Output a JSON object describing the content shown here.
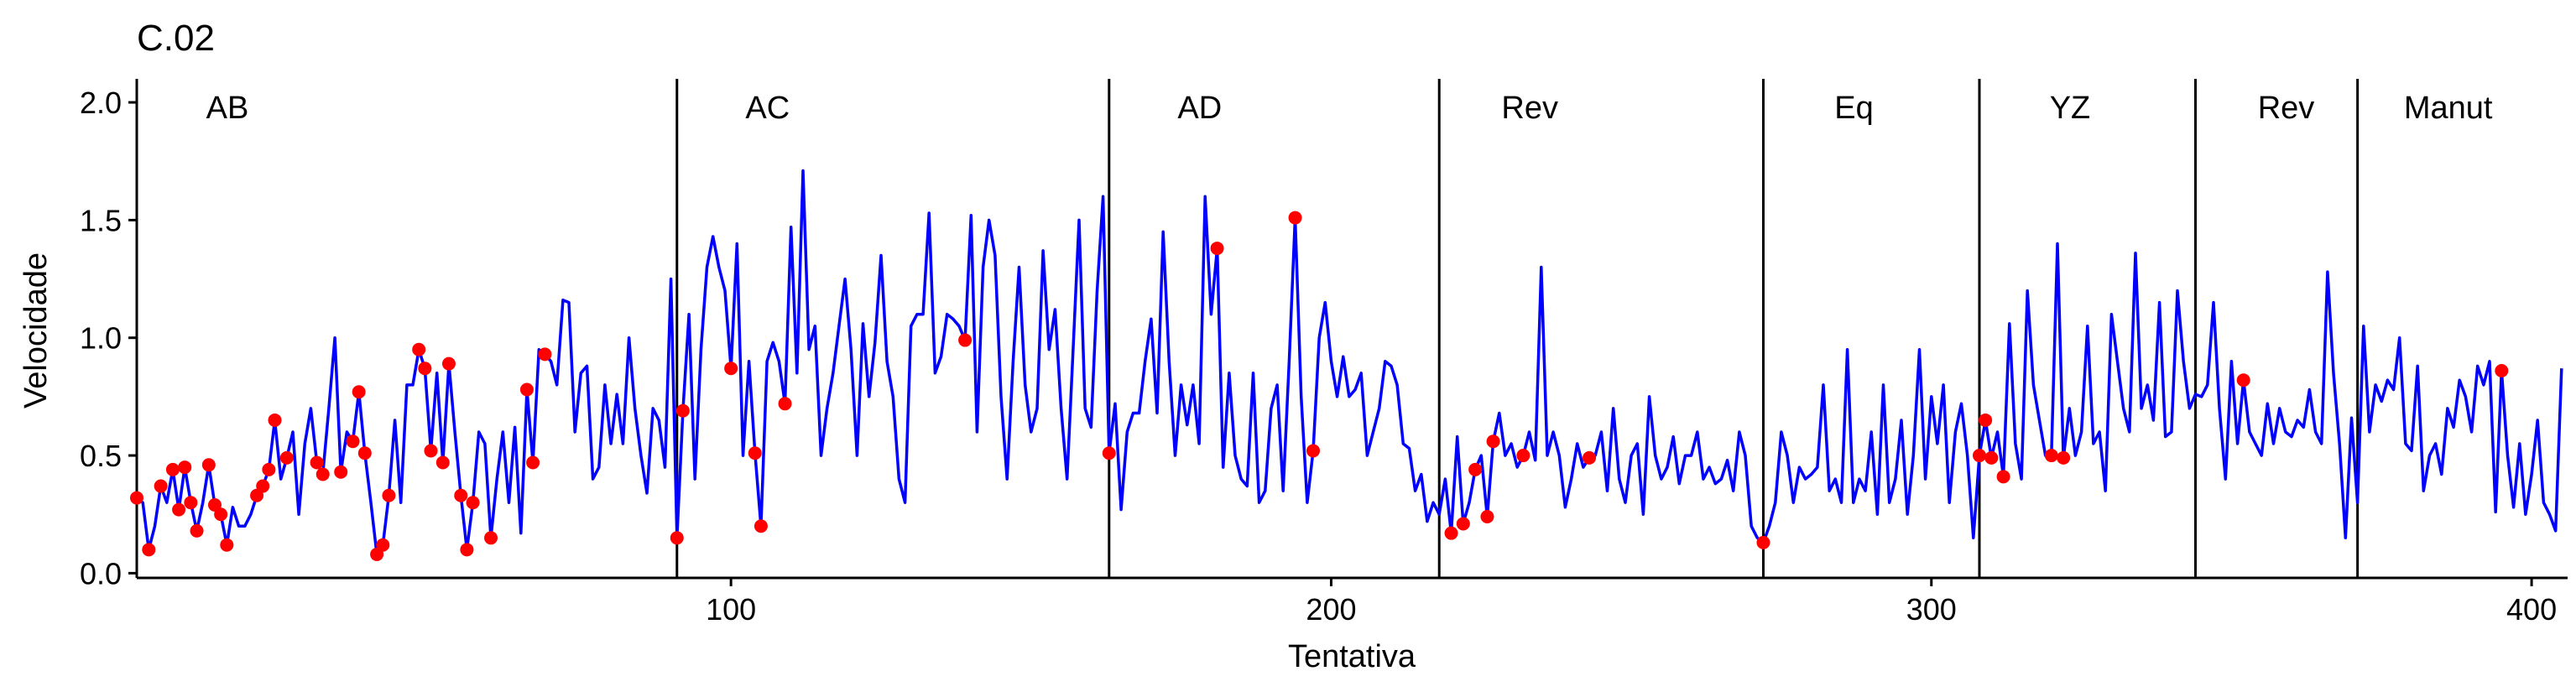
{
  "chart_data": {
    "type": "line",
    "title": "C.02",
    "x_label": "Tentativa",
    "y_label": "Velocidade",
    "xlim": [
      1,
      406
    ],
    "ylim": [
      -0.02,
      2.1
    ],
    "xticks": [
      100,
      200,
      300,
      400
    ],
    "yticks": [
      {
        "value": 0,
        "label": "0.0"
      },
      0.5,
      {
        "value": 1,
        "label": "1.0"
      },
      1.5,
      {
        "value": 2,
        "label": "2.0"
      }
    ],
    "grid": false,
    "series": [
      {
        "color": "#0000ff",
        "x": [
          1,
          2,
          3,
          4,
          5,
          6,
          7,
          8,
          9,
          10,
          11,
          12,
          13,
          14,
          15,
          16,
          17,
          18,
          19,
          20,
          21,
          22,
          23,
          24,
          25,
          26,
          27,
          28,
          29,
          30,
          31,
          32,
          33,
          34,
          35,
          36,
          37,
          38,
          39,
          40,
          41,
          42,
          43,
          44,
          45,
          46,
          47,
          48,
          49,
          50,
          51,
          52,
          53,
          54,
          55,
          56,
          57,
          58,
          59,
          60,
          61,
          62,
          63,
          64,
          65,
          66,
          67,
          68,
          69,
          70,
          71,
          72,
          73,
          74,
          75,
          76,
          77,
          78,
          79,
          80,
          81,
          82,
          83,
          84,
          85,
          86,
          87,
          88,
          89,
          90,
          91,
          92,
          93,
          94,
          95,
          96,
          97,
          98,
          99,
          100,
          101,
          102,
          103,
          104,
          105,
          106,
          107,
          108,
          109,
          110,
          111,
          112,
          113,
          114,
          115,
          116,
          117,
          118,
          119,
          120,
          121,
          122,
          123,
          124,
          125,
          126,
          127,
          128,
          129,
          130,
          131,
          132,
          133,
          134,
          135,
          136,
          137,
          138,
          139,
          140,
          141,
          142,
          143,
          144,
          145,
          146,
          147,
          148,
          149,
          150,
          151,
          152,
          153,
          154,
          155,
          156,
          157,
          158,
          159,
          160,
          161,
          162,
          163,
          164,
          165,
          166,
          167,
          168,
          169,
          170,
          171,
          172,
          173,
          174,
          175,
          176,
          177,
          178,
          179,
          180,
          181,
          182,
          183,
          184,
          185,
          186,
          187,
          188,
          189,
          190,
          191,
          192,
          193,
          194,
          195,
          196,
          197,
          198,
          199,
          200,
          201,
          202,
          203,
          204,
          205,
          206,
          207,
          208,
          209,
          210,
          211,
          212,
          213,
          214,
          215,
          216,
          217,
          218,
          219,
          220,
          221,
          222,
          223,
          224,
          225,
          226,
          227,
          228,
          229,
          230,
          231,
          232,
          233,
          234,
          235,
          236,
          237,
          238,
          239,
          240,
          241,
          242,
          243,
          244,
          245,
          246,
          247,
          248,
          249,
          250,
          251,
          252,
          253,
          254,
          255,
          256,
          257,
          258,
          259,
          260,
          261,
          262,
          263,
          264,
          265,
          266,
          267,
          268,
          269,
          270,
          271,
          272,
          273,
          274,
          275,
          276,
          277,
          278,
          279,
          280,
          281,
          282,
          283,
          284,
          285,
          286,
          287,
          288,
          289,
          290,
          291,
          292,
          293,
          294,
          295,
          296,
          297,
          298,
          299,
          300,
          301,
          302,
          303,
          304,
          305,
          306,
          307,
          308,
          309,
          310,
          311,
          312,
          313,
          314,
          315,
          316,
          317,
          318,
          319,
          320,
          321,
          322,
          323,
          324,
          325,
          326,
          327,
          328,
          329,
          330,
          331,
          332,
          333,
          334,
          335,
          336,
          337,
          338,
          339,
          340,
          341,
          342,
          343,
          344,
          345,
          346,
          347,
          348,
          349,
          350,
          351,
          352,
          353,
          354,
          355,
          356,
          357,
          358,
          359,
          360,
          361,
          362,
          363,
          364,
          365,
          366,
          367,
          368,
          369,
          370,
          371,
          372,
          373,
          374,
          375,
          376,
          377,
          378,
          379,
          380,
          381,
          382,
          383,
          384,
          385,
          386,
          387,
          388,
          389,
          390,
          391,
          392,
          393,
          394,
          395,
          396,
          397,
          398,
          399,
          400,
          401,
          402,
          403,
          404,
          405
        ],
        "values": [
          0.32,
          0.3,
          0.1,
          0.2,
          0.37,
          0.3,
          0.44,
          0.27,
          0.45,
          0.3,
          0.18,
          0.3,
          0.46,
          0.29,
          0.25,
          0.12,
          0.28,
          0.2,
          0.2,
          0.25,
          0.33,
          0.37,
          0.44,
          0.65,
          0.4,
          0.49,
          0.6,
          0.25,
          0.55,
          0.7,
          0.47,
          0.42,
          0.7,
          1.0,
          0.43,
          0.6,
          0.56,
          0.77,
          0.51,
          0.3,
          0.08,
          0.12,
          0.33,
          0.65,
          0.3,
          0.8,
          0.8,
          0.95,
          0.87,
          0.52,
          0.85,
          0.47,
          0.89,
          0.6,
          0.33,
          0.1,
          0.3,
          0.6,
          0.55,
          0.15,
          0.4,
          0.6,
          0.3,
          0.62,
          0.17,
          0.78,
          0.47,
          0.95,
          0.93,
          0.9,
          0.8,
          1.16,
          1.15,
          0.6,
          0.85,
          0.88,
          0.4,
          0.45,
          0.8,
          0.55,
          0.76,
          0.55,
          1.0,
          0.7,
          0.5,
          0.34,
          0.7,
          0.65,
          0.45,
          1.25,
          0.15,
          0.69,
          1.1,
          0.4,
          0.95,
          1.3,
          1.43,
          1.3,
          1.2,
          0.87,
          1.4,
          0.5,
          0.9,
          0.51,
          0.2,
          0.9,
          0.98,
          0.9,
          0.72,
          1.47,
          0.85,
          1.71,
          0.95,
          1.05,
          0.5,
          0.7,
          0.85,
          1.05,
          1.25,
          0.95,
          0.5,
          1.06,
          0.75,
          0.98,
          1.35,
          0.9,
          0.75,
          0.4,
          0.3,
          1.05,
          1.1,
          1.1,
          1.53,
          0.85,
          0.92,
          1.1,
          1.08,
          1.05,
          0.99,
          1.52,
          0.6,
          1.3,
          1.5,
          1.35,
          0.75,
          0.4,
          0.9,
          1.3,
          0.8,
          0.6,
          0.7,
          1.37,
          0.95,
          1.12,
          0.7,
          0.4,
          0.95,
          1.5,
          0.7,
          0.62,
          1.2,
          1.6,
          0.51,
          0.72,
          0.27,
          0.6,
          0.68,
          0.68,
          0.9,
          1.08,
          0.68,
          1.45,
          0.9,
          0.5,
          0.8,
          0.63,
          0.8,
          0.55,
          1.6,
          1.1,
          1.38,
          0.45,
          0.85,
          0.5,
          0.4,
          0.37,
          0.85,
          0.3,
          0.35,
          0.7,
          0.8,
          0.35,
          0.9,
          1.51,
          0.75,
          0.3,
          0.52,
          1.0,
          1.15,
          0.9,
          0.75,
          0.92,
          0.75,
          0.78,
          0.85,
          0.5,
          0.6,
          0.7,
          0.9,
          0.88,
          0.8,
          0.55,
          0.53,
          0.35,
          0.42,
          0.22,
          0.3,
          0.25,
          0.4,
          0.17,
          0.58,
          0.21,
          0.3,
          0.44,
          0.5,
          0.24,
          0.56,
          0.68,
          0.5,
          0.55,
          0.45,
          0.5,
          0.6,
          0.48,
          1.3,
          0.5,
          0.6,
          0.5,
          0.28,
          0.4,
          0.55,
          0.45,
          0.49,
          0.5,
          0.6,
          0.35,
          0.7,
          0.4,
          0.3,
          0.5,
          0.55,
          0.25,
          0.75,
          0.5,
          0.4,
          0.45,
          0.58,
          0.38,
          0.5,
          0.5,
          0.6,
          0.4,
          0.45,
          0.38,
          0.4,
          0.48,
          0.35,
          0.6,
          0.5,
          0.2,
          0.15,
          0.13,
          0.2,
          0.3,
          0.6,
          0.5,
          0.3,
          0.45,
          0.4,
          0.42,
          0.45,
          0.8,
          0.35,
          0.4,
          0.3,
          0.95,
          0.3,
          0.4,
          0.35,
          0.6,
          0.25,
          0.8,
          0.3,
          0.4,
          0.65,
          0.25,
          0.5,
          0.95,
          0.4,
          0.75,
          0.55,
          0.8,
          0.3,
          0.6,
          0.72,
          0.5,
          0.15,
          0.5,
          0.65,
          0.49,
          0.6,
          0.41,
          1.06,
          0.55,
          0.4,
          1.2,
          0.8,
          0.65,
          0.5,
          0.5,
          1.4,
          0.49,
          0.7,
          0.5,
          0.6,
          1.05,
          0.55,
          0.6,
          0.35,
          1.1,
          0.9,
          0.7,
          0.6,
          1.36,
          0.7,
          0.8,
          0.65,
          1.15,
          0.58,
          0.6,
          1.2,
          0.9,
          0.7,
          0.76,
          0.75,
          0.8,
          1.15,
          0.7,
          0.4,
          0.9,
          0.55,
          0.82,
          0.6,
          0.55,
          0.5,
          0.72,
          0.55,
          0.7,
          0.6,
          0.58,
          0.65,
          0.62,
          0.78,
          0.6,
          0.55,
          1.28,
          0.85,
          0.55,
          0.15,
          0.66,
          0.3,
          1.05,
          0.6,
          0.8,
          0.73,
          0.82,
          0.78,
          1.0,
          0.55,
          0.52,
          0.88,
          0.35,
          0.5,
          0.55,
          0.42,
          0.7,
          0.62,
          0.82,
          0.75,
          0.6,
          0.88,
          0.8,
          0.9,
          0.26,
          0.86,
          0.5,
          0.28,
          0.55,
          0.25,
          0.42,
          0.65,
          0.3,
          0.25,
          0.18,
          0.87
        ]
      }
    ],
    "highlights": {
      "color": "#ff0000",
      "x": [
        1,
        3,
        5,
        7,
        8,
        9,
        10,
        11,
        13,
        14,
        15,
        16,
        21,
        22,
        23,
        24,
        26,
        31,
        32,
        35,
        37,
        38,
        39,
        41,
        42,
        43,
        48,
        49,
        50,
        52,
        53,
        55,
        56,
        57,
        60,
        66,
        67,
        69,
        91,
        92,
        100,
        104,
        105,
        109,
        139,
        163,
        181,
        194,
        197,
        220,
        222,
        224,
        226,
        227,
        232,
        243,
        272,
        308,
        309,
        310,
        312,
        320,
        322,
        352,
        395
      ],
      "values": [
        0.32,
        0.1,
        0.37,
        0.44,
        0.27,
        0.45,
        0.3,
        0.18,
        0.46,
        0.29,
        0.25,
        0.12,
        0.33,
        0.37,
        0.44,
        0.65,
        0.49,
        0.47,
        0.42,
        0.43,
        0.56,
        0.77,
        0.51,
        0.08,
        0.12,
        0.33,
        0.95,
        0.87,
        0.52,
        0.47,
        0.89,
        0.33,
        0.1,
        0.3,
        0.15,
        0.78,
        0.47,
        0.93,
        0.15,
        0.69,
        0.87,
        0.51,
        0.2,
        0.72,
        0.99,
        0.51,
        1.38,
        1.51,
        0.52,
        0.17,
        0.21,
        0.44,
        0.24,
        0.56,
        0.5,
        0.49,
        0.13,
        0.5,
        0.65,
        0.49,
        0.41,
        0.5,
        0.49,
        0.82,
        0.86
      ]
    },
    "phases": [
      {
        "label": "AB"
      },
      {
        "label": "AC",
        "x": 91
      },
      {
        "label": "AD",
        "x": 163
      },
      {
        "label": "Rev",
        "x": 218
      },
      {
        "label": "Eq",
        "x": 272
      },
      {
        "label": "YZ",
        "x": 308
      },
      {
        "label": "Rev",
        "x": 344
      },
      {
        "label": "Manut",
        "x": 371
      }
    ]
  }
}
